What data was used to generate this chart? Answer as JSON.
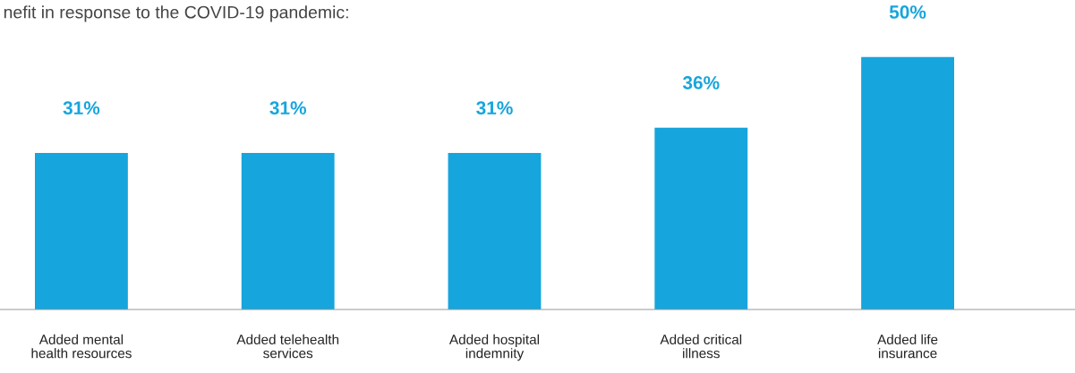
{
  "chart_data": {
    "type": "bar",
    "title": "nefit in response to the COVID-19 pandemic:",
    "categories": [
      "Added mental\nhealth resources",
      "Added telehealth\nservices",
      "Added hospital\nindemnity",
      "Added critical\nillness",
      "Added life\ninsurance"
    ],
    "values": [
      31,
      31,
      31,
      36,
      50
    ],
    "color": "#16a5dc",
    "value_labels": [
      "31%",
      "31%",
      "31%",
      "36%",
      "50%"
    ]
  }
}
